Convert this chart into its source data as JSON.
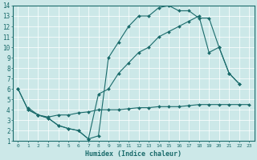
{
  "xlabel": "Humidex (Indice chaleur)",
  "xlim": [
    -0.5,
    23.5
  ],
  "ylim": [
    1,
    14
  ],
  "xticks": [
    0,
    1,
    2,
    3,
    4,
    5,
    6,
    7,
    8,
    9,
    10,
    11,
    12,
    13,
    14,
    15,
    16,
    17,
    18,
    19,
    20,
    21,
    22,
    23
  ],
  "yticks": [
    1,
    2,
    3,
    4,
    5,
    6,
    7,
    8,
    9,
    10,
    11,
    12,
    13,
    14
  ],
  "bg_color": "#cce8e8",
  "line_color": "#1a6b6b",
  "grid_color": "#b0d8d8",
  "line1_x": [
    0,
    1,
    2,
    3,
    4,
    5,
    6,
    7,
    8,
    9,
    10,
    11,
    12,
    13,
    14,
    15,
    16,
    17,
    18,
    19,
    20,
    21,
    22
  ],
  "line1_y": [
    6,
    4,
    3.5,
    3.2,
    2.5,
    2.2,
    2.0,
    1.2,
    1.5,
    9.0,
    10.5,
    12.0,
    13.0,
    13.0,
    13.8,
    14.0,
    13.5,
    13.5,
    12.8,
    12.8,
    10.0,
    7.5,
    6.5
  ],
  "line2_x": [
    1,
    2,
    3,
    4,
    5,
    6,
    7,
    8,
    9,
    10,
    11,
    12,
    13,
    14,
    15,
    16,
    17,
    18,
    19,
    20,
    21,
    22,
    23
  ],
  "line2_y": [
    4.2,
    3.5,
    3.3,
    3.5,
    3.5,
    3.7,
    3.8,
    4.0,
    4.0,
    4.0,
    4.1,
    4.2,
    4.2,
    4.3,
    4.3,
    4.3,
    4.4,
    4.5,
    4.5,
    4.5,
    4.5,
    4.5,
    4.5
  ],
  "line3_x": [
    0,
    1,
    2,
    3,
    4,
    5,
    6,
    7,
    8,
    9,
    10,
    11,
    12,
    13,
    14,
    15,
    16,
    17,
    18,
    19,
    20,
    21,
    22
  ],
  "line3_y": [
    6,
    4,
    3.5,
    3.2,
    2.5,
    2.2,
    2.0,
    1.2,
    5.5,
    6.0,
    7.5,
    8.5,
    9.5,
    10.0,
    11.0,
    11.5,
    12.0,
    12.5,
    13.0,
    9.5,
    10.0,
    7.5,
    6.5
  ]
}
